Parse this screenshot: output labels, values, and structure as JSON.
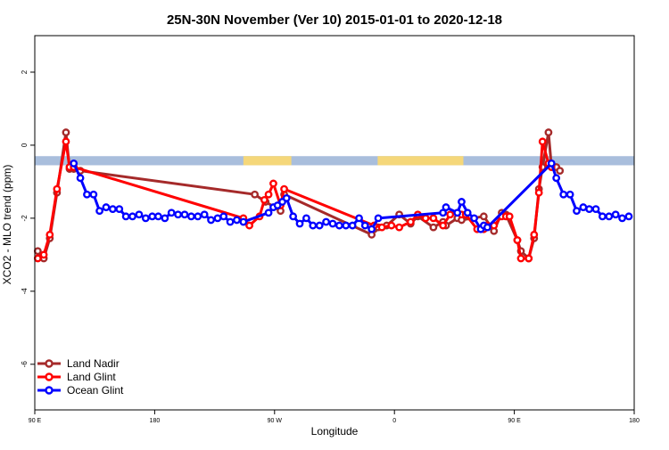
{
  "chart_data": {
    "type": "line",
    "title": "25N-30N November (Ver 10)   2015-01-01 to 2020-12-18",
    "xlabel": "Longitude",
    "ylabel": "XCO2 - MLO trend (ppm)",
    "xlim": [
      0,
      1
    ],
    "ylim": [
      -7.25,
      3
    ],
    "x_ticks": [
      {
        "pos": 0.0,
        "label": "90 E"
      },
      {
        "pos": 0.2,
        "label": "180"
      },
      {
        "pos": 0.4,
        "label": "90 W"
      },
      {
        "pos": 0.6,
        "label": "0"
      },
      {
        "pos": 0.8,
        "label": "90 E"
      },
      {
        "pos": 1.0,
        "label": "180"
      }
    ],
    "y_ticks": [
      -6,
      -4,
      -2,
      0,
      2
    ],
    "grid": false,
    "legend_position": "bottom-left",
    "colors": {
      "land_nadir": "#a52a2a",
      "land_glint": "#ff0000",
      "ocean_glint": "#0000ff",
      "ocean_band": "#a9bedc",
      "land_band": "#f5d77a"
    },
    "land_mask_band": {
      "y_range": [
        -0.55,
        -0.3
      ],
      "land_segments": [
        [
          0.348,
          0.428
        ],
        [
          0.572,
          0.715
        ]
      ]
    },
    "series": [
      {
        "name": "Land Nadir",
        "key": "land_nadir",
        "x": [
          0.005,
          0.015,
          0.025,
          0.037,
          0.052,
          0.058,
          0.065,
          0.076,
          0.367,
          0.385,
          0.41,
          0.416,
          0.562,
          0.566,
          0.573,
          0.587,
          0.608,
          0.627,
          0.639,
          0.665,
          0.681,
          0.686,
          0.705,
          0.712,
          0.749,
          0.766,
          0.779,
          0.786,
          0.805,
          0.811,
          0.824,
          0.833,
          0.841,
          0.847,
          0.857,
          0.862,
          0.87,
          0.876
        ],
        "y": [
          -2.9,
          -3.1,
          -2.55,
          -1.3,
          0.35,
          -0.65,
          -0.65,
          -0.7,
          -1.35,
          -1.55,
          -1.8,
          -1.35,
          -2.45,
          -2.3,
          -2.25,
          -2.2,
          -1.9,
          -2.15,
          -1.95,
          -2.25,
          -2.1,
          -2.2,
          -2.0,
          -2.05,
          -1.95,
          -2.35,
          -1.85,
          -1.9,
          -2.6,
          -2.9,
          -3.1,
          -2.55,
          -1.2,
          -0.6,
          0.35,
          -0.6,
          -0.6,
          -0.7
        ]
      },
      {
        "name": "Land Glint",
        "key": "land_glint",
        "x": [
          0.005,
          0.015,
          0.025,
          0.037,
          0.052,
          0.058,
          0.065,
          0.348,
          0.358,
          0.375,
          0.383,
          0.39,
          0.398,
          0.41,
          0.416,
          0.566,
          0.579,
          0.595,
          0.608,
          0.627,
          0.639,
          0.652,
          0.665,
          0.681,
          0.693,
          0.705,
          0.712,
          0.719,
          0.738,
          0.749,
          0.755,
          0.766,
          0.779,
          0.786,
          0.792,
          0.805,
          0.811,
          0.824,
          0.833,
          0.841,
          0.847,
          0.857,
          0.862
        ],
        "y": [
          -3.1,
          -3.0,
          -2.45,
          -1.2,
          0.1,
          -0.6,
          -0.6,
          -2.0,
          -2.2,
          -1.95,
          -1.5,
          -1.35,
          -1.05,
          -1.65,
          -1.2,
          -2.2,
          -2.25,
          -2.2,
          -2.25,
          -2.1,
          -1.9,
          -2.0,
          -2.0,
          -2.2,
          -1.9,
          -1.85,
          -1.9,
          -1.9,
          -2.3,
          -2.3,
          -2.2,
          -2.2,
          -1.95,
          -1.95,
          -1.95,
          -2.6,
          -3.1,
          -3.1,
          -2.45,
          -1.3,
          0.1,
          -0.5,
          -0.6
        ]
      },
      {
        "name": "Ocean Glint",
        "key": "ocean_glint",
        "x": [
          0.065,
          0.076,
          0.087,
          0.098,
          0.108,
          0.119,
          0.13,
          0.141,
          0.152,
          0.163,
          0.174,
          0.185,
          0.196,
          0.206,
          0.217,
          0.228,
          0.239,
          0.25,
          0.261,
          0.272,
          0.283,
          0.294,
          0.305,
          0.315,
          0.326,
          0.337,
          0.348,
          0.39,
          0.398,
          0.405,
          0.413,
          0.42,
          0.431,
          0.442,
          0.453,
          0.464,
          0.475,
          0.486,
          0.497,
          0.508,
          0.519,
          0.53,
          0.541,
          0.551,
          0.562,
          0.573,
          0.681,
          0.686,
          0.705,
          0.712,
          0.722,
          0.733,
          0.744,
          0.749,
          0.755,
          0.862,
          0.87,
          0.882,
          0.893,
          0.904,
          0.915,
          0.925,
          0.936,
          0.947,
          0.958,
          0.969,
          0.98,
          0.991
        ],
        "y": [
          -0.5,
          -0.9,
          -1.35,
          -1.35,
          -1.8,
          -1.7,
          -1.75,
          -1.75,
          -1.95,
          -1.95,
          -1.9,
          -2.0,
          -1.95,
          -1.95,
          -2.0,
          -1.85,
          -1.9,
          -1.9,
          -1.95,
          -1.95,
          -1.9,
          -2.05,
          -2.0,
          -1.95,
          -2.1,
          -2.05,
          -2.1,
          -1.85,
          -1.7,
          -1.65,
          -1.55,
          -1.45,
          -1.95,
          -2.15,
          -2.0,
          -2.2,
          -2.2,
          -2.1,
          -2.15,
          -2.2,
          -2.2,
          -2.2,
          -2.0,
          -2.2,
          -2.3,
          -2.0,
          -1.85,
          -1.7,
          -1.85,
          -1.55,
          -1.85,
          -2.0,
          -2.3,
          -2.2,
          -2.25,
          -0.5,
          -0.9,
          -1.35,
          -1.35,
          -1.8,
          -1.7,
          -1.75,
          -1.75,
          -1.95,
          -1.95,
          -1.9,
          -2.0,
          -1.95
        ]
      }
    ]
  }
}
